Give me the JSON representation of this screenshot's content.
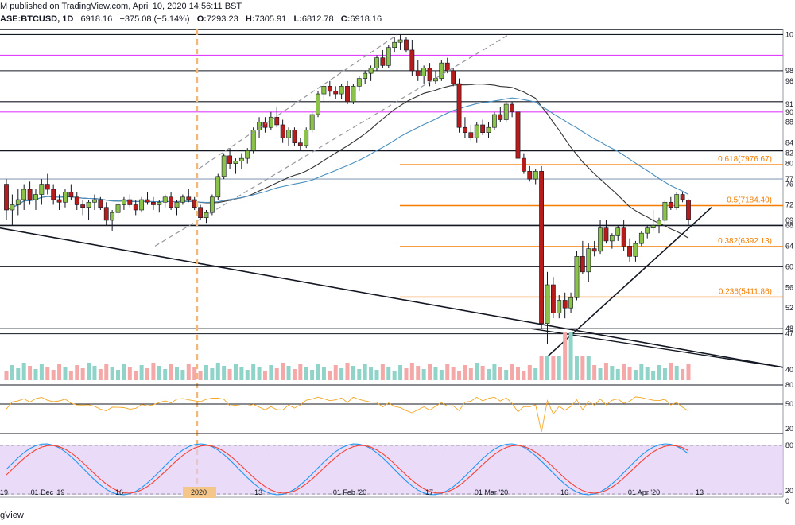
{
  "header": {
    "published": "M published on TradingView.com, April 10, 2020 14:56:11 BST",
    "symbol": "ASE:BTCUSD, 1D",
    "last": "6918.16",
    "change": "−375.08 (−5.14%)",
    "o_label": "O:",
    "o": "7293.23",
    "h_label": "H:",
    "h": "7305.91",
    "l_label": "L:",
    "l": "6812.78",
    "c_label": "C:",
    "c": "6918.16"
  },
  "footer": {
    "brand": "gView"
  },
  "colors": {
    "up": "#26a69a",
    "down": "#b71c1c",
    "upBody": "#8bc34a",
    "fib": "#f57c00",
    "magenta": "#e040fb",
    "stochK": "#2196f3",
    "stochD": "#f44336",
    "rsi": "#f5a623",
    "ma1": "#333333",
    "ma2": "#4a90c2"
  },
  "chart_data": {
    "type": "candlestick",
    "symbol": "BTCUSD",
    "timeframe": "1D",
    "ylim": [
      3800,
      10600
    ],
    "x_ticks": [
      "19",
      "01 Dec '19",
      "16",
      "2020",
      "13",
      "01 Feb '20",
      "17",
      "01 Mar '20",
      "16",
      "01 Apr '20",
      "13"
    ],
    "right_ticks": [
      "10",
      "98",
      "96",
      "91",
      "90",
      "88",
      "84",
      "82",
      "80",
      "77",
      "76",
      "72",
      "69",
      "68",
      "64",
      "60",
      "56",
      "52",
      "48",
      "47",
      "40"
    ],
    "fib_levels": [
      {
        "label": "0.618(7976.67)",
        "value": 7976.67
      },
      {
        "label": "0.5(7184.40)",
        "value": 7184.4
      },
      {
        "label": "0.382(6392.13)",
        "value": 6392.13
      },
      {
        "label": "0.236(5411.86)",
        "value": 5411.86
      }
    ],
    "horizontal_levels": [
      10500,
      10100,
      9800,
      9200,
      9000,
      8250,
      7700,
      6800,
      6000,
      4800,
      4700
    ],
    "rsi_ticks": [
      "80",
      "50",
      "20"
    ],
    "stoch_ticks": [
      "80",
      "20",
      "0"
    ],
    "candles_ohlc": [
      [
        7600,
        7700,
        6900,
        7100
      ],
      [
        7100,
        7400,
        6800,
        7200
      ],
      [
        7200,
        7500,
        7000,
        7300
      ],
      [
        7300,
        7600,
        7100,
        7500
      ],
      [
        7500,
        7650,
        7200,
        7300
      ],
      [
        7300,
        7500,
        7100,
        7400
      ],
      [
        7400,
        7700,
        7200,
        7600
      ],
      [
        7600,
        7800,
        7400,
        7500
      ],
      [
        7500,
        7600,
        7200,
        7300
      ],
      [
        7300,
        7400,
        7100,
        7250
      ],
      [
        7250,
        7500,
        7150,
        7450
      ],
      [
        7450,
        7600,
        7300,
        7350
      ],
      [
        7350,
        7450,
        7100,
        7200
      ],
      [
        7200,
        7300,
        7000,
        7150
      ],
      [
        7150,
        7300,
        6900,
        7250
      ],
      [
        7250,
        7400,
        7100,
        7300
      ],
      [
        7300,
        7350,
        7100,
        7150
      ],
      [
        7150,
        7250,
        6800,
        6900
      ],
      [
        6900,
        7100,
        6700,
        7050
      ],
      [
        7050,
        7250,
        6950,
        7200
      ],
      [
        7200,
        7350,
        7100,
        7300
      ],
      [
        7300,
        7400,
        7150,
        7200
      ],
      [
        7200,
        7300,
        7000,
        7100
      ],
      [
        7100,
        7350,
        7050,
        7300
      ],
      [
        7300,
        7450,
        7200,
        7250
      ],
      [
        7250,
        7350,
        7100,
        7200
      ],
      [
        7200,
        7300,
        7050,
        7250
      ],
      [
        7250,
        7400,
        7150,
        7350
      ],
      [
        7350,
        7450,
        7100,
        7150
      ],
      [
        7150,
        7300,
        7000,
        7250
      ],
      [
        7250,
        7400,
        7200,
        7350
      ],
      [
        7350,
        7500,
        7250,
        7300
      ],
      [
        7300,
        7350,
        7100,
        7150
      ],
      [
        7150,
        7200,
        6900,
        6950
      ],
      [
        6950,
        7100,
        6850,
        7050
      ],
      [
        7050,
        7400,
        7000,
        7350
      ],
      [
        7350,
        7800,
        7300,
        7750
      ],
      [
        7750,
        8200,
        7700,
        8150
      ],
      [
        8150,
        8300,
        7900,
        8000
      ],
      [
        8000,
        8100,
        7800,
        8050
      ],
      [
        8050,
        8200,
        7900,
        8100
      ],
      [
        8100,
        8300,
        8000,
        8250
      ],
      [
        8250,
        8700,
        8200,
        8650
      ],
      [
        8650,
        8900,
        8500,
        8800
      ],
      [
        8800,
        8900,
        8600,
        8700
      ],
      [
        8700,
        9000,
        8650,
        8900
      ],
      [
        8900,
        9100,
        8700,
        8750
      ],
      [
        8750,
        8850,
        8400,
        8500
      ],
      [
        8500,
        8700,
        8350,
        8650
      ],
      [
        8650,
        8700,
        8350,
        8400
      ],
      [
        8400,
        8500,
        8250,
        8350
      ],
      [
        8350,
        8700,
        8300,
        8650
      ],
      [
        8650,
        9000,
        8600,
        8950
      ],
      [
        8950,
        9400,
        8900,
        9350
      ],
      [
        9350,
        9550,
        9200,
        9500
      ],
      [
        9500,
        9600,
        9300,
        9400
      ],
      [
        9400,
        9500,
        9250,
        9350
      ],
      [
        9350,
        9550,
        9250,
        9500
      ],
      [
        9500,
        9600,
        9150,
        9200
      ],
      [
        9200,
        9550,
        9150,
        9500
      ],
      [
        9500,
        9700,
        9400,
        9650
      ],
      [
        9650,
        9800,
        9550,
        9750
      ],
      [
        9750,
        9900,
        9600,
        9850
      ],
      [
        9850,
        10100,
        9800,
        10050
      ],
      [
        10050,
        10200,
        9850,
        9900
      ],
      [
        9900,
        10300,
        9850,
        10250
      ],
      [
        10250,
        10450,
        10150,
        10350
      ],
      [
        10350,
        10500,
        10200,
        10400
      ],
      [
        10400,
        10450,
        10150,
        10200
      ],
      [
        10200,
        10400,
        9700,
        9800
      ],
      [
        9800,
        10000,
        9600,
        9700
      ],
      [
        9700,
        9900,
        9550,
        9850
      ],
      [
        9850,
        9950,
        9500,
        9600
      ],
      [
        9600,
        9800,
        9550,
        9650
      ],
      [
        9650,
        10000,
        9600,
        9950
      ],
      [
        9950,
        10050,
        9750,
        9800
      ],
      [
        9800,
        9850,
        9500,
        9550
      ],
      [
        9550,
        9650,
        8600,
        8700
      ],
      [
        8700,
        8900,
        8500,
        8600
      ],
      [
        8600,
        8750,
        8450,
        8500
      ],
      [
        8500,
        8800,
        8400,
        8750
      ],
      [
        8750,
        8850,
        8550,
        8600
      ],
      [
        8600,
        8800,
        8500,
        8700
      ],
      [
        8700,
        9000,
        8650,
        8950
      ],
      [
        8950,
        9100,
        8800,
        8850
      ],
      [
        8850,
        9200,
        8800,
        9150
      ],
      [
        9150,
        9200,
        8900,
        9000
      ],
      [
        9000,
        9100,
        8050,
        8100
      ],
      [
        8100,
        8200,
        7800,
        7850
      ],
      [
        7850,
        7950,
        7650,
        7700
      ],
      [
        7700,
        7900,
        7600,
        7850
      ],
      [
        7850,
        7950,
        4800,
        4900
      ],
      [
        4900,
        5900,
        4500,
        5650
      ],
      [
        5650,
        5800,
        5000,
        5100
      ],
      [
        5100,
        5450,
        5000,
        5350
      ],
      [
        5350,
        5500,
        5000,
        5200
      ],
      [
        5200,
        5500,
        5100,
        5400
      ],
      [
        5400,
        6300,
        5350,
        6200
      ],
      [
        6200,
        6500,
        5850,
        5900
      ],
      [
        5900,
        6450,
        5700,
        6350
      ],
      [
        6350,
        6500,
        6200,
        6300
      ],
      [
        6300,
        6900,
        6250,
        6750
      ],
      [
        6750,
        6900,
        6450,
        6500
      ],
      [
        6500,
        6650,
        6350,
        6600
      ],
      [
        6600,
        6800,
        6500,
        6750
      ],
      [
        6750,
        6900,
        6300,
        6400
      ],
      [
        6400,
        6550,
        6100,
        6200
      ],
      [
        6200,
        6500,
        6100,
        6450
      ],
      [
        6450,
        6700,
        6400,
        6650
      ],
      [
        6650,
        6800,
        6550,
        6750
      ],
      [
        6750,
        7100,
        6700,
        6800
      ],
      [
        6800,
        6950,
        6650,
        6900
      ],
      [
        6900,
        7300,
        6850,
        7250
      ],
      [
        7250,
        7350,
        7100,
        7150
      ],
      [
        7150,
        7450,
        7100,
        7400
      ],
      [
        7400,
        7450,
        7250,
        7300
      ],
      [
        7293,
        7306,
        6813,
        6918
      ]
    ]
  }
}
